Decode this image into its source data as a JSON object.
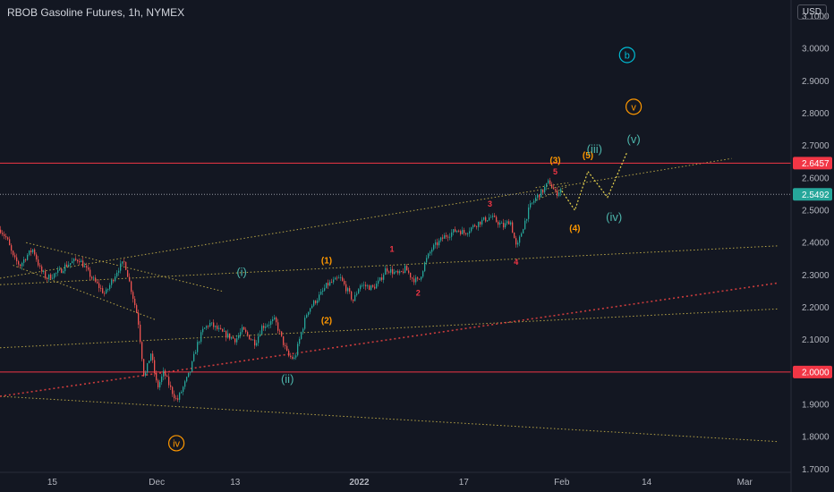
{
  "header": {
    "title": "RBOB Gasoline Futures, 1h, NYMEX",
    "currency": "USD"
  },
  "colors": {
    "bg": "#131722",
    "up": "#26a69a",
    "down": "#ef5350",
    "level": "#f23645",
    "trend": "#c8b34a",
    "red_dotted": "#e0403f",
    "orange": "#ff9800",
    "teal": "#4db6ac",
    "cyan": "#00bcd4"
  },
  "chart_data": {
    "type": "candlestick",
    "title": "RBOB Gasoline Futures, 1h, NYMEX",
    "x_range": [
      "2021-11-07",
      "2022-03-06"
    ],
    "ylim": [
      1.69,
      3.15
    ],
    "y_ticks": [
      1.7,
      1.8,
      1.9,
      2.0,
      2.1,
      2.2,
      2.3,
      2.4,
      2.5,
      2.6,
      2.7,
      2.8,
      2.9,
      3.0,
      3.1
    ],
    "y_tick_labels": [
      "1.7000",
      "1.8000",
      "1.9000",
      "2.0000",
      "2.1000",
      "2.2000",
      "2.3000",
      "2.4000",
      "2.5000",
      "2.6000",
      "2.7000",
      "2.8000",
      "2.9000",
      "3.0000",
      "3.1000"
    ],
    "x_ticks": [
      {
        "date": "2021-11-15",
        "label": "15",
        "bold": false
      },
      {
        "date": "2021-12-01",
        "label": "Dec",
        "bold": false
      },
      {
        "date": "2021-12-13",
        "label": "13",
        "bold": false
      },
      {
        "date": "2022-01-01",
        "label": "2022",
        "bold": true
      },
      {
        "date": "2022-01-17",
        "label": "17",
        "bold": false
      },
      {
        "date": "2022-02-01",
        "label": "Feb",
        "bold": false
      },
      {
        "date": "2022-02-14",
        "label": "14",
        "bold": false
      },
      {
        "date": "2022-03-01",
        "label": "Mar",
        "bold": false
      }
    ],
    "price_path": [
      [
        "2021-11-07",
        2.44
      ],
      [
        "2021-11-08",
        2.41
      ],
      [
        "2021-11-09",
        2.35
      ],
      [
        "2021-11-10",
        2.33
      ],
      [
        "2021-11-11",
        2.36
      ],
      [
        "2021-11-12",
        2.38
      ],
      [
        "2021-11-13",
        2.32
      ],
      [
        "2021-11-14",
        2.29
      ],
      [
        "2021-11-16",
        2.31
      ],
      [
        "2021-11-17",
        2.33
      ],
      [
        "2021-11-19",
        2.35
      ],
      [
        "2021-11-21",
        2.29
      ],
      [
        "2021-11-23",
        2.24
      ],
      [
        "2021-11-25",
        2.32
      ],
      [
        "2021-11-26",
        2.34
      ],
      [
        "2021-11-28",
        2.17
      ],
      [
        "2021-11-29",
        1.98
      ],
      [
        "2021-11-30",
        2.06
      ],
      [
        "2021-12-01",
        1.95
      ],
      [
        "2021-12-02",
        2.0
      ],
      [
        "2021-12-03",
        1.95
      ],
      [
        "2021-12-04",
        1.91
      ],
      [
        "2021-12-06",
        2.0
      ],
      [
        "2021-12-07",
        2.08
      ],
      [
        "2021-12-08",
        2.13
      ],
      [
        "2021-12-09",
        2.15
      ],
      [
        "2021-12-11",
        2.12
      ],
      [
        "2021-12-13",
        2.1
      ],
      [
        "2021-12-14",
        2.13
      ],
      [
        "2021-12-16",
        2.09
      ],
      [
        "2021-12-17",
        2.14
      ],
      [
        "2021-12-19",
        2.16
      ],
      [
        "2021-12-21",
        2.05
      ],
      [
        "2021-12-22",
        2.04
      ],
      [
        "2021-12-23",
        2.12
      ],
      [
        "2021-12-24",
        2.19
      ],
      [
        "2021-12-26",
        2.24
      ],
      [
        "2021-12-27",
        2.27
      ],
      [
        "2021-12-29",
        2.29
      ],
      [
        "2021-12-31",
        2.22
      ],
      [
        "2022-01-01",
        2.27
      ],
      [
        "2022-01-03",
        2.26
      ],
      [
        "2022-01-04",
        2.28
      ],
      [
        "2022-01-05",
        2.32
      ],
      [
        "2022-01-07",
        2.3
      ],
      [
        "2022-01-08",
        2.32
      ],
      [
        "2022-01-09",
        2.29
      ],
      [
        "2022-01-10",
        2.28
      ],
      [
        "2022-01-11",
        2.34
      ],
      [
        "2022-01-12",
        2.38
      ],
      [
        "2022-01-13",
        2.4
      ],
      [
        "2022-01-14",
        2.42
      ],
      [
        "2022-01-16",
        2.44
      ],
      [
        "2022-01-17",
        2.43
      ],
      [
        "2022-01-19",
        2.46
      ],
      [
        "2022-01-21",
        2.48
      ],
      [
        "2022-01-23",
        2.45
      ],
      [
        "2022-01-24",
        2.47
      ],
      [
        "2022-01-25",
        2.38
      ],
      [
        "2022-01-26",
        2.45
      ],
      [
        "2022-01-27",
        2.51
      ],
      [
        "2022-01-28",
        2.54
      ],
      [
        "2022-01-29",
        2.56
      ],
      [
        "2022-01-30",
        2.59
      ],
      [
        "2022-01-31",
        2.55
      ],
      [
        "2022-02-01",
        2.57
      ]
    ],
    "projection": [
      [
        "2022-02-01",
        2.56
      ],
      [
        "2022-02-03",
        2.5
      ],
      [
        "2022-02-05",
        2.62
      ],
      [
        "2022-02-08",
        2.54
      ],
      [
        "2022-02-11",
        2.68
      ]
    ],
    "horizontal_levels": [
      {
        "price": 2.6457,
        "label": "2.6457",
        "style": "solid",
        "color": "#f23645"
      },
      {
        "price": 2.0,
        "label": "2.0000",
        "style": "solid",
        "color": "#f23645"
      },
      {
        "price": 2.5492,
        "label": "2.5492",
        "style": "dotted",
        "color": "#9598a1"
      }
    ],
    "trend_lines": [
      {
        "from": [
          "2021-11-07",
          2.29
        ],
        "to": [
          "2022-02-27",
          2.66
        ],
        "color": "#c8b34a"
      },
      {
        "from": [
          "2021-11-07",
          2.27
        ],
        "to": [
          "2022-03-06",
          2.39
        ],
        "color": "#c8b34a"
      },
      {
        "from": [
          "2021-11-07",
          2.075
        ],
        "to": [
          "2022-03-06",
          2.195
        ],
        "color": "#c8b34a"
      },
      {
        "from": [
          "2021-11-07",
          1.925
        ],
        "to": [
          "2022-03-06",
          1.785
        ],
        "color": "#c8b34a"
      },
      {
        "from": [
          "2021-11-07",
          1.925
        ],
        "to": [
          "2022-03-06",
          2.275
        ],
        "color": "#e0403f"
      },
      {
        "from": [
          "2021-11-11",
          2.4
        ],
        "to": [
          "2021-12-11",
          2.25
        ],
        "color": "#c8b34a"
      },
      {
        "from": [
          "2021-11-09",
          2.33
        ],
        "to": [
          "2021-12-01",
          2.16
        ],
        "color": "#c8b34a"
      },
      {
        "from": [
          "2022-01-28",
          2.57
        ],
        "to": [
          "2022-02-02",
          2.585
        ],
        "color": "#c8b34a"
      },
      {
        "from": [
          "2022-01-28",
          2.53
        ],
        "to": [
          "2022-02-02",
          2.575
        ],
        "color": "#c8b34a"
      }
    ],
    "wave_labels": [
      {
        "text": "(i)",
        "date": "2021-12-14",
        "price": 2.31,
        "color": "#4db6ac",
        "size": 13,
        "circle": false
      },
      {
        "text": "(ii)",
        "date": "2021-12-21",
        "price": 1.98,
        "color": "#4db6ac",
        "size": 13,
        "circle": false
      },
      {
        "text": "iv",
        "date": "2021-12-04",
        "price": 1.78,
        "color": "#ff9800",
        "size": 11,
        "circle": true
      },
      {
        "text": "(1)",
        "date": "2021-12-27",
        "price": 2.345,
        "color": "#ff9800",
        "size": 10,
        "circle": false
      },
      {
        "text": "(2)",
        "date": "2021-12-27",
        "price": 2.16,
        "color": "#ff9800",
        "size": 10,
        "circle": false
      },
      {
        "text": "1",
        "date": "2022-01-06",
        "price": 2.38,
        "color": "#f23645",
        "size": 9,
        "circle": false
      },
      {
        "text": "2",
        "date": "2022-01-10",
        "price": 2.245,
        "color": "#f23645",
        "size": 9,
        "circle": false
      },
      {
        "text": "3",
        "date": "2022-01-21",
        "price": 2.52,
        "color": "#f23645",
        "size": 9,
        "circle": false
      },
      {
        "text": "4",
        "date": "2022-01-25",
        "price": 2.34,
        "color": "#f23645",
        "size": 9,
        "circle": false
      },
      {
        "text": "(3)",
        "date": "2022-01-31",
        "price": 2.655,
        "color": "#ff9800",
        "size": 10,
        "circle": false
      },
      {
        "text": "5",
        "date": "2022-01-31",
        "price": 2.62,
        "color": "#f23645",
        "size": 9,
        "circle": false
      },
      {
        "text": "(5)",
        "date": "2022-02-05",
        "price": 2.67,
        "color": "#ff9800",
        "size": 10,
        "circle": false
      },
      {
        "text": "(4)",
        "date": "2022-02-03",
        "price": 2.445,
        "color": "#ff9800",
        "size": 10,
        "circle": false
      },
      {
        "text": "(iii)",
        "date": "2022-02-06",
        "price": 2.69,
        "color": "#4db6ac",
        "size": 13,
        "circle": false
      },
      {
        "text": "(iv)",
        "date": "2022-02-09",
        "price": 2.48,
        "color": "#4db6ac",
        "size": 13,
        "circle": false
      },
      {
        "text": "(v)",
        "date": "2022-02-12",
        "price": 2.72,
        "color": "#4db6ac",
        "size": 13,
        "circle": false
      },
      {
        "text": "v",
        "date": "2022-02-12",
        "price": 2.82,
        "color": "#ff9800",
        "size": 11,
        "circle": true
      },
      {
        "text": "b",
        "date": "2022-02-11",
        "price": 2.98,
        "color": "#00bcd4",
        "size": 11,
        "circle": true
      }
    ]
  }
}
